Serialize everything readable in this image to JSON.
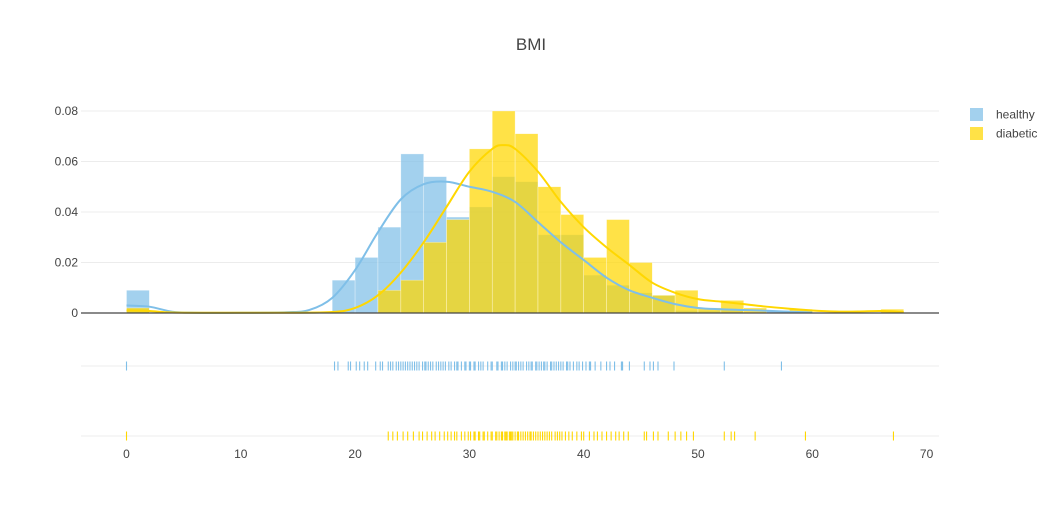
{
  "chart_data": {
    "type": "histogram",
    "title": "BMI",
    "xlim": [
      -4,
      71
    ],
    "ylim": [
      0,
      0.085
    ],
    "x_ticks": [
      0,
      10,
      20,
      30,
      40,
      50,
      60,
      70
    ],
    "x_tick_labels": [
      "0",
      "10",
      "20",
      "30",
      "40",
      "50",
      "60",
      "70"
    ],
    "y_ticks": [
      0,
      0.02,
      0.04,
      0.06,
      0.08
    ],
    "y_tick_labels": [
      "0",
      "0.02",
      "0.04",
      "0.06",
      "0.08"
    ],
    "legend_position": "top-right",
    "grid": true,
    "bin_width": 2,
    "series": [
      {
        "name": "healthy",
        "color": "#7fbfe8",
        "bars": [
          {
            "x0": 0,
            "value": 0.009
          },
          {
            "x0": 18,
            "value": 0.013
          },
          {
            "x0": 20,
            "value": 0.022
          },
          {
            "x0": 22,
            "value": 0.034
          },
          {
            "x0": 24,
            "value": 0.063
          },
          {
            "x0": 26,
            "value": 0.054
          },
          {
            "x0": 28,
            "value": 0.038
          },
          {
            "x0": 30,
            "value": 0.042
          },
          {
            "x0": 32,
            "value": 0.054
          },
          {
            "x0": 34,
            "value": 0.052
          },
          {
            "x0": 36,
            "value": 0.031
          },
          {
            "x0": 38,
            "value": 0.031
          },
          {
            "x0": 40,
            "value": 0.015
          },
          {
            "x0": 42,
            "value": 0.011
          },
          {
            "x0": 44,
            "value": 0.008
          },
          {
            "x0": 46,
            "value": 0.007
          },
          {
            "x0": 48,
            "value": 0.001
          },
          {
            "x0": 50,
            "value": 0.001
          },
          {
            "x0": 52,
            "value": 0.001
          },
          {
            "x0": 56,
            "value": 0.001
          }
        ],
        "kde": [
          [
            0,
            0.003
          ],
          [
            2,
            0.0025
          ],
          [
            4,
            0.0005
          ],
          [
            6,
            0.0001
          ],
          [
            10,
            0.0001
          ],
          [
            14,
            0.0003
          ],
          [
            16,
            0.0012
          ],
          [
            18,
            0.006
          ],
          [
            20,
            0.017
          ],
          [
            22,
            0.032
          ],
          [
            24,
            0.045
          ],
          [
            26,
            0.051
          ],
          [
            28,
            0.052
          ],
          [
            30,
            0.05
          ],
          [
            32,
            0.048
          ],
          [
            34,
            0.044
          ],
          [
            36,
            0.036
          ],
          [
            38,
            0.028
          ],
          [
            40,
            0.021
          ],
          [
            42,
            0.014
          ],
          [
            44,
            0.009
          ],
          [
            46,
            0.006
          ],
          [
            48,
            0.0035
          ],
          [
            50,
            0.002
          ],
          [
            52,
            0.0015
          ],
          [
            54,
            0.0012
          ],
          [
            56,
            0.0009
          ],
          [
            58,
            0.0005
          ],
          [
            60,
            0.0002
          ]
        ],
        "rug": [
          0,
          18.2,
          18.5,
          19.4,
          19.6,
          20.1,
          20.4,
          20.8,
          21.1,
          21.8,
          22.2,
          22.4,
          22.9,
          23.1,
          23.3,
          23.6,
          23.8,
          24.0,
          24.2,
          24.4,
          24.6,
          24.8,
          25.0,
          25.2,
          25.4,
          25.6,
          25.9,
          26.1,
          26.2,
          26.4,
          26.6,
          26.8,
          27.1,
          27.3,
          27.5,
          27.7,
          27.9,
          28.2,
          28.4,
          28.7,
          28.9,
          29.0,
          29.3,
          29.6,
          29.7,
          30.0,
          30.1,
          30.4,
          30.5,
          30.8,
          31.0,
          31.2,
          31.6,
          31.9,
          32.0,
          32.4,
          32.5,
          32.8,
          32.9,
          33.1,
          33.3,
          33.6,
          33.8,
          34.0,
          34.1,
          34.3,
          34.5,
          34.7,
          35.0,
          35.2,
          35.4,
          35.5,
          35.8,
          35.9,
          36.1,
          36.3,
          36.5,
          36.6,
          36.8,
          37.1,
          37.2,
          37.4,
          37.6,
          37.8,
          38.0,
          38.2,
          38.5,
          38.6,
          38.8,
          39.1,
          39.4,
          39.6,
          39.9,
          40.2,
          40.5,
          40.6,
          41.0,
          41.5,
          42.0,
          42.3,
          42.7,
          43.3,
          43.4,
          44.0,
          45.3,
          45.8,
          46.1,
          46.5,
          47.9,
          52.3,
          57.3
        ]
      },
      {
        "name": "diabetic",
        "color": "#ffd700",
        "bars": [
          {
            "x0": 0,
            "value": 0.002
          },
          {
            "x0": 22,
            "value": 0.009
          },
          {
            "x0": 24,
            "value": 0.013
          },
          {
            "x0": 26,
            "value": 0.028
          },
          {
            "x0": 28,
            "value": 0.037
          },
          {
            "x0": 30,
            "value": 0.065
          },
          {
            "x0": 32,
            "value": 0.08
          },
          {
            "x0": 34,
            "value": 0.071
          },
          {
            "x0": 36,
            "value": 0.05
          },
          {
            "x0": 38,
            "value": 0.039
          },
          {
            "x0": 40,
            "value": 0.022
          },
          {
            "x0": 42,
            "value": 0.037
          },
          {
            "x0": 44,
            "value": 0.02
          },
          {
            "x0": 46,
            "value": 0.007
          },
          {
            "x0": 48,
            "value": 0.009
          },
          {
            "x0": 50,
            "value": 0.002
          },
          {
            "x0": 52,
            "value": 0.005
          },
          {
            "x0": 54,
            "value": 0.002
          },
          {
            "x0": 58,
            "value": 0.0015
          },
          {
            "x0": 66,
            "value": 0.0015
          }
        ],
        "kde": [
          [
            0,
            0.001
          ],
          [
            2,
            0.0008
          ],
          [
            4,
            0.0002
          ],
          [
            8,
            0.0001
          ],
          [
            14,
            0.0001
          ],
          [
            18,
            0.0004
          ],
          [
            20,
            0.002
          ],
          [
            22,
            0.007
          ],
          [
            24,
            0.016
          ],
          [
            26,
            0.028
          ],
          [
            28,
            0.042
          ],
          [
            30,
            0.056
          ],
          [
            32,
            0.065
          ],
          [
            33,
            0.0665
          ],
          [
            34,
            0.065
          ],
          [
            36,
            0.056
          ],
          [
            38,
            0.044
          ],
          [
            40,
            0.034
          ],
          [
            42,
            0.026
          ],
          [
            44,
            0.019
          ],
          [
            46,
            0.012
          ],
          [
            48,
            0.008
          ],
          [
            50,
            0.0055
          ],
          [
            52,
            0.0045
          ],
          [
            54,
            0.0035
          ],
          [
            56,
            0.0025
          ],
          [
            58,
            0.0017
          ],
          [
            60,
            0.001
          ],
          [
            62,
            0.0006
          ],
          [
            64,
            0.0006
          ],
          [
            66,
            0.0008
          ],
          [
            68,
            0.0003
          ]
        ],
        "rug": [
          0,
          22.9,
          23.3,
          23.7,
          24.2,
          24.6,
          25.1,
          25.6,
          25.9,
          26.3,
          26.7,
          27.0,
          27.4,
          27.8,
          28.1,
          28.4,
          28.7,
          28.9,
          29.3,
          29.6,
          29.9,
          30.1,
          30.4,
          30.5,
          30.8,
          30.9,
          31.2,
          31.3,
          31.6,
          31.9,
          32.0,
          32.3,
          32.4,
          32.6,
          32.8,
          32.9,
          33.1,
          33.2,
          33.3,
          33.5,
          33.6,
          33.7,
          33.8,
          34.0,
          34.2,
          34.3,
          34.5,
          34.7,
          34.9,
          35.1,
          35.3,
          35.4,
          35.6,
          35.8,
          36.0,
          36.2,
          36.4,
          36.6,
          36.8,
          37.0,
          37.2,
          37.5,
          37.7,
          37.9,
          38.1,
          38.4,
          38.7,
          39.0,
          39.4,
          39.8,
          40.0,
          40.5,
          40.9,
          41.2,
          41.6,
          42.0,
          42.4,
          42.8,
          43.1,
          43.5,
          43.9,
          45.3,
          45.5,
          46.1,
          46.5,
          47.4,
          48.0,
          48.5,
          49.0,
          49.6,
          52.3,
          52.9,
          53.2,
          55.0,
          59.4,
          67.1
        ]
      }
    ]
  }
}
